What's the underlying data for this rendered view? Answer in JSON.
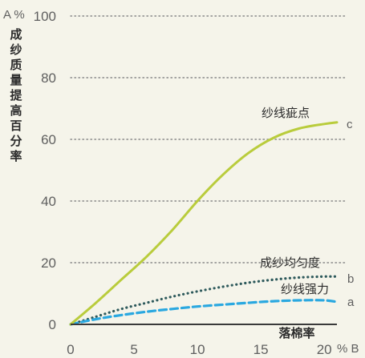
{
  "chart_data": {
    "type": "line",
    "y_unit_label": "A %",
    "x_unit_label": "% B",
    "ylabel": "成纱质量提高百分率",
    "xlabel": "落棉率",
    "xlim": [
      0,
      21
    ],
    "ylim": [
      0,
      100
    ],
    "x_ticks": [
      "0",
      "5",
      "10",
      "15",
      "20"
    ],
    "y_ticks": [
      "0",
      "20",
      "40",
      "60",
      "80",
      "100"
    ],
    "grid": "horizontal-dotted",
    "series": [
      {
        "name": "纱线疵点",
        "end_label": "c",
        "color": "#b9cc3c",
        "style": "solid",
        "x": [
          0,
          2,
          4,
          6,
          8,
          10,
          12,
          14,
          16,
          18,
          20,
          21
        ],
        "y": [
          0,
          7,
          14.5,
          22,
          30.5,
          40,
          48.5,
          55.5,
          60.5,
          63.5,
          65,
          65.5
        ]
      },
      {
        "name": "成纱均匀度",
        "end_label": "b",
        "color": "#2e5a5c",
        "style": "dotted",
        "x": [
          0,
          2,
          4,
          6,
          8,
          10,
          12,
          14,
          16,
          18,
          20,
          21
        ],
        "y": [
          0,
          2.5,
          5,
          7,
          9,
          10.7,
          12.2,
          13.5,
          14.5,
          15.2,
          15.5,
          15.5
        ]
      },
      {
        "name": "纱线强力",
        "end_label": "a",
        "color": "#2aa8e0",
        "style": "dashed",
        "x": [
          0,
          2,
          4,
          6,
          8,
          10,
          12,
          14,
          16,
          18,
          20,
          21
        ],
        "y": [
          0,
          1.7,
          3,
          4.1,
          5,
          5.8,
          6.4,
          7,
          7.5,
          7.8,
          7.8,
          7.3
        ]
      }
    ]
  }
}
